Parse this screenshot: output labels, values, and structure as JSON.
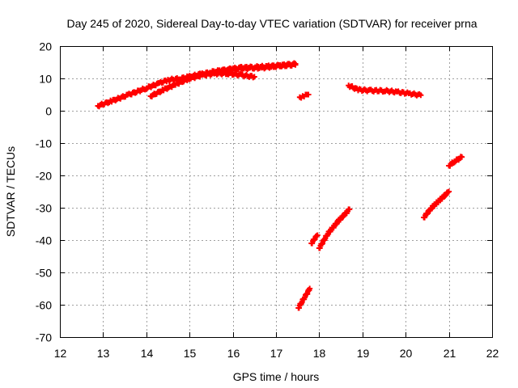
{
  "chart_data": {
    "type": "scatter",
    "title": "Day 245 of 2020, Sidereal Day-to-day VTEC variation (SDTVAR) for receiver prna",
    "xlabel": "GPS time / hours",
    "ylabel": "SDTVAR / TECUs",
    "xlim": [
      12,
      22
    ],
    "ylim": [
      -70,
      20
    ],
    "xticks": [
      12,
      13,
      14,
      15,
      16,
      17,
      18,
      19,
      20,
      21,
      22
    ],
    "yticks": [
      -70,
      -60,
      -50,
      -40,
      -30,
      -20,
      -10,
      0,
      10,
      20
    ],
    "grid": true,
    "legend": "none",
    "marker": "plus",
    "color": "#ff0000",
    "series": [
      {
        "x": [
          12.88,
          13.2,
          13.6,
          14.0,
          14.3,
          14.5,
          14.8,
          15.0,
          15.3
        ],
        "y": [
          1.5,
          3.0,
          5.0,
          7.0,
          8.5,
          9.5,
          10.0,
          10.5,
          11.5
        ]
      },
      {
        "x": [
          14.1,
          14.4,
          14.7,
          15.0,
          15.3,
          15.6,
          15.9,
          16.2,
          16.5
        ],
        "y": [
          4.5,
          6.5,
          8.3,
          10.0,
          11.0,
          11.5,
          11.5,
          11.0,
          10.5
        ]
      },
      {
        "x": [
          15.2,
          15.5,
          15.8,
          16.1,
          16.4,
          16.7,
          17.0,
          17.3,
          17.45
        ],
        "y": [
          11.0,
          12.0,
          12.5,
          13.0,
          13.2,
          13.3,
          13.8,
          14.2,
          14.5
        ]
      },
      {
        "x": [
          15.6,
          15.9,
          16.2,
          16.5,
          16.8,
          17.1,
          17.45
        ],
        "y": [
          12.0,
          12.8,
          13.3,
          13.5,
          13.7,
          14.0,
          14.2
        ]
      },
      {
        "x": [
          17.55,
          17.65,
          17.75
        ],
        "y": [
          4.2,
          4.6,
          5.0
        ]
      },
      {
        "x": [
          18.68,
          18.9,
          19.2,
          19.5,
          19.8,
          20.1,
          20.35
        ],
        "y": [
          7.8,
          6.5,
          6.2,
          6.2,
          5.8,
          5.3,
          4.8
        ]
      },
      {
        "x": [
          17.52,
          17.6,
          17.7,
          17.78
        ],
        "y": [
          -61.0,
          -59.0,
          -57.0,
          -55.0
        ]
      },
      {
        "x": [
          17.82,
          17.9,
          17.96
        ],
        "y": [
          -41.0,
          -39.5,
          -38.5
        ]
      },
      {
        "x": [
          18.0,
          18.2,
          18.45,
          18.7
        ],
        "y": [
          -42.5,
          -38.0,
          -34.0,
          -30.5
        ]
      },
      {
        "x": [
          20.42,
          20.6,
          20.8,
          21.0
        ],
        "y": [
          -33.0,
          -30.0,
          -27.5,
          -25.0
        ]
      },
      {
        "x": [
          21.0,
          21.15,
          21.3
        ],
        "y": [
          -17.0,
          -15.5,
          -14.3
        ]
      }
    ]
  }
}
